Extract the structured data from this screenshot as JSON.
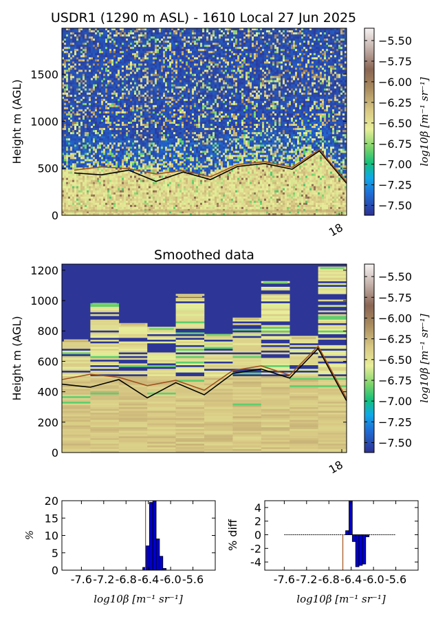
{
  "chart_data": [
    {
      "type": "heatmap",
      "title": "USDR1 (1290 m ASL) - 1610 Local 27 Jun 2025",
      "ylabel": "Height m (AGL)",
      "xticks": [
        "18"
      ],
      "yticks": [
        0,
        500,
        1000,
        1500
      ],
      "ylim": [
        0,
        1990
      ],
      "colorbar": {
        "label": "log10β [m⁻¹ sr⁻¹]",
        "ticks": [
          "−5.50",
          "−5.75",
          "−6.00",
          "−6.25",
          "−6.50",
          "−6.75",
          "−7.00",
          "−7.25",
          "−7.50"
        ],
        "range": [
          -7.62,
          -5.35
        ]
      },
      "series": [
        {
          "values": [
            450,
            430,
            480,
            360,
            460,
            380,
            520,
            550,
            490,
            685,
            340
          ]
        },
        {
          "values": [
            480,
            515,
            495,
            440,
            475,
            410,
            540,
            570,
            510,
            700,
            355
          ]
        }
      ]
    },
    {
      "type": "heatmap",
      "title": "Smoothed data",
      "ylabel": "Height m (AGL)",
      "xticks": [
        "18"
      ],
      "yticks": [
        0,
        200,
        400,
        600,
        800,
        1000,
        1200
      ],
      "ylim": [
        0,
        1240
      ],
      "colorbar": {
        "label": "log10β [m⁻¹ sr⁻¹]",
        "ticks": [
          "−5.50",
          "−5.75",
          "−6.00",
          "−6.25",
          "−6.50",
          "−6.75",
          "−7.00",
          "−7.25",
          "−7.50"
        ],
        "range": [
          -7.62,
          -5.35
        ]
      },
      "series": [
        {
          "values": [
            450,
            430,
            480,
            360,
            460,
            380,
            520,
            550,
            490,
            685,
            340
          ]
        },
        {
          "values": [
            480,
            515,
            495,
            440,
            475,
            410,
            540,
            570,
            510,
            700,
            355
          ]
        }
      ],
      "column_tops": [
        745,
        985,
        850,
        820,
        1035,
        780,
        885,
        1125,
        760,
        1220
      ]
    },
    {
      "type": "bar",
      "xlabel": "log10β [m⁻¹ sr⁻¹]",
      "ylabel": "%",
      "xticks": [
        "-7.6",
        "-7.2",
        "-6.8",
        "-6.4",
        "-6.0",
        "-5.6"
      ],
      "yticks": [
        0,
        5,
        10,
        15,
        20
      ],
      "ylim": [
        0,
        20
      ],
      "x": [
        -6.5,
        -6.44,
        -6.38,
        -6.32,
        -6.26,
        -6.2,
        -6.14
      ],
      "values": [
        0.8,
        7,
        19.5,
        20,
        9,
        4,
        0.5
      ],
      "reference_line": -6.45
    },
    {
      "type": "bar",
      "xlabel": "log10β [m⁻¹ sr⁻¹]",
      "ylabel": "% diff",
      "xticks": [
        "-7.6",
        "-7.2",
        "-6.8",
        "-6.4",
        "-6.0",
        "-5.6"
      ],
      "yticks": [
        4,
        2,
        0,
        -2,
        -4
      ],
      "ylim": [
        -5.2,
        5
      ],
      "x": [
        -6.5,
        -6.44,
        -6.38,
        -6.32,
        -6.26,
        -6.2,
        -6.14
      ],
      "values": [
        0.6,
        5,
        -1,
        -4.7,
        -4.5,
        -4.3,
        -0.3
      ],
      "reference_line": -6.55,
      "zero_line_range": [
        -7.6,
        -5.6
      ]
    }
  ]
}
